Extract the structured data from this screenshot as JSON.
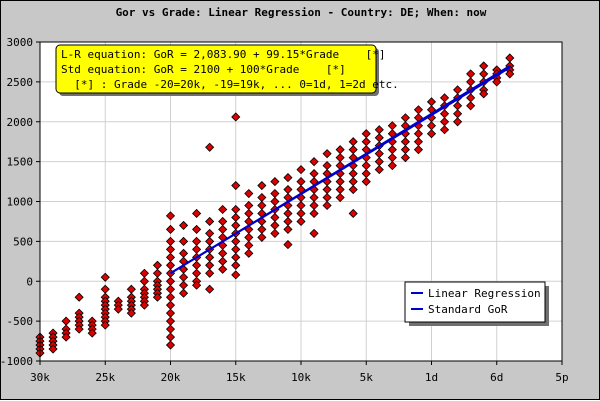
{
  "chart_data": {
    "type": "scatter",
    "title": "Gor vs Grade: Linear Regression - Country: DE; When: now",
    "xlabel": "",
    "ylabel": "",
    "x_ticks": [
      {
        "grade": -30,
        "label": "30k"
      },
      {
        "grade": -25,
        "label": "25k"
      },
      {
        "grade": -20,
        "label": "20k"
      },
      {
        "grade": -15,
        "label": "15k"
      },
      {
        "grade": -10,
        "label": "10k"
      },
      {
        "grade": -5,
        "label": "5k"
      },
      {
        "grade": 0,
        "label": "1d"
      },
      {
        "grade": 5,
        "label": "6d"
      },
      {
        "grade": 10,
        "label": "5p"
      }
    ],
    "xlim": [
      -30,
      10
    ],
    "ylim": [
      -1000,
      3000
    ],
    "y_ticks": [
      -1000,
      -500,
      0,
      500,
      1000,
      1500,
      2000,
      2500,
      3000
    ],
    "grid": true,
    "annotation_lines": [
      "L-R equation: GoR = 2,083.90 + 99.15*Grade    [*]",
      "Std equation: GoR = 2100 + 100*Grade    [*]",
      "  [*] : Grade -20=20k, -19=19k, ... 0=1d, 1=2d etc."
    ],
    "legend_position": "bottom-right",
    "series": [
      {
        "name": "Linear Regression",
        "color": "#0000cc",
        "line": {
          "intercept": 2083.9,
          "slope": 99.15,
          "x_from": -20,
          "x_to": 6
        }
      },
      {
        "name": "Standard GoR",
        "color": "#0000cc",
        "line": {
          "intercept": 2100,
          "slope": 100,
          "x_from": -20,
          "x_to": 6
        }
      }
    ],
    "points_color": "#dd0000",
    "points": [
      [
        -30,
        -700
      ],
      [
        -30,
        -750
      ],
      [
        -30,
        -800
      ],
      [
        -30,
        -850
      ],
      [
        -30,
        -900
      ],
      [
        -29,
        -650
      ],
      [
        -29,
        -700
      ],
      [
        -29,
        -750
      ],
      [
        -29,
        -800
      ],
      [
        -29,
        -850
      ],
      [
        -28,
        -500
      ],
      [
        -28,
        -600
      ],
      [
        -28,
        -650
      ],
      [
        -28,
        -700
      ],
      [
        -27,
        -200
      ],
      [
        -27,
        -400
      ],
      [
        -27,
        -450
      ],
      [
        -27,
        -500
      ],
      [
        -27,
        -550
      ],
      [
        -27,
        -600
      ],
      [
        -26,
        -500
      ],
      [
        -26,
        -550
      ],
      [
        -26,
        -600
      ],
      [
        -26,
        -650
      ],
      [
        -25,
        50
      ],
      [
        -25,
        -100
      ],
      [
        -25,
        -200
      ],
      [
        -25,
        -250
      ],
      [
        -25,
        -300
      ],
      [
        -25,
        -350
      ],
      [
        -25,
        -400
      ],
      [
        -25,
        -450
      ],
      [
        -25,
        -500
      ],
      [
        -25,
        -550
      ],
      [
        -24,
        -250
      ],
      [
        -24,
        -300
      ],
      [
        -24,
        -350
      ],
      [
        -23,
        -100
      ],
      [
        -23,
        -200
      ],
      [
        -23,
        -250
      ],
      [
        -23,
        -300
      ],
      [
        -23,
        -350
      ],
      [
        -23,
        -400
      ],
      [
        -22,
        100
      ],
      [
        -22,
        0
      ],
      [
        -22,
        -100
      ],
      [
        -22,
        -150
      ],
      [
        -22,
        -200
      ],
      [
        -22,
        -250
      ],
      [
        -22,
        -300
      ],
      [
        -21,
        200
      ],
      [
        -21,
        100
      ],
      [
        -21,
        0
      ],
      [
        -21,
        -50
      ],
      [
        -21,
        -100
      ],
      [
        -21,
        -150
      ],
      [
        -21,
        -200
      ],
      [
        -20,
        820
      ],
      [
        -20,
        650
      ],
      [
        -20,
        500
      ],
      [
        -20,
        400
      ],
      [
        -20,
        300
      ],
      [
        -20,
        200
      ],
      [
        -20,
        100
      ],
      [
        -20,
        0
      ],
      [
        -20,
        -100
      ],
      [
        -20,
        -200
      ],
      [
        -20,
        -300
      ],
      [
        -20,
        -400
      ],
      [
        -20,
        -500
      ],
      [
        -20,
        -600
      ],
      [
        -20,
        -700
      ],
      [
        -20,
        -800
      ],
      [
        -19,
        700
      ],
      [
        -19,
        500
      ],
      [
        -19,
        350
      ],
      [
        -19,
        250
      ],
      [
        -19,
        150
      ],
      [
        -19,
        50
      ],
      [
        -19,
        -50
      ],
      [
        -19,
        -150
      ],
      [
        -18,
        850
      ],
      [
        -18,
        650
      ],
      [
        -18,
        500
      ],
      [
        -18,
        400
      ],
      [
        -18,
        300
      ],
      [
        -18,
        200
      ],
      [
        -18,
        100
      ],
      [
        -18,
        0
      ],
      [
        -18,
        -50
      ],
      [
        -17,
        1680
      ],
      [
        -17,
        750
      ],
      [
        -17,
        600
      ],
      [
        -17,
        500
      ],
      [
        -17,
        400
      ],
      [
        -17,
        300
      ],
      [
        -17,
        200
      ],
      [
        -17,
        100
      ],
      [
        -17,
        -100
      ],
      [
        -16,
        900
      ],
      [
        -16,
        750
      ],
      [
        -16,
        650
      ],
      [
        -16,
        550
      ],
      [
        -16,
        450
      ],
      [
        -16,
        350
      ],
      [
        -16,
        250
      ],
      [
        -16,
        150
      ],
      [
        -15,
        2060
      ],
      [
        -15,
        1200
      ],
      [
        -15,
        900
      ],
      [
        -15,
        800
      ],
      [
        -15,
        700
      ],
      [
        -15,
        600
      ],
      [
        -15,
        500
      ],
      [
        -15,
        400
      ],
      [
        -15,
        300
      ],
      [
        -15,
        200
      ],
      [
        -15,
        80
      ],
      [
        -14,
        1100
      ],
      [
        -14,
        950
      ],
      [
        -14,
        850
      ],
      [
        -14,
        750
      ],
      [
        -14,
        650
      ],
      [
        -14,
        550
      ],
      [
        -14,
        450
      ],
      [
        -14,
        350
      ],
      [
        -13,
        1200
      ],
      [
        -13,
        1050
      ],
      [
        -13,
        950
      ],
      [
        -13,
        850
      ],
      [
        -13,
        750
      ],
      [
        -13,
        650
      ],
      [
        -13,
        550
      ],
      [
        -12,
        1250
      ],
      [
        -12,
        1100
      ],
      [
        -12,
        1000
      ],
      [
        -12,
        900
      ],
      [
        -12,
        800
      ],
      [
        -12,
        700
      ],
      [
        -12,
        600
      ],
      [
        -11,
        1300
      ],
      [
        -11,
        1150
      ],
      [
        -11,
        1050
      ],
      [
        -11,
        950
      ],
      [
        -11,
        850
      ],
      [
        -11,
        750
      ],
      [
        -11,
        650
      ],
      [
        -11,
        460
      ],
      [
        -10,
        1400
      ],
      [
        -10,
        1250
      ],
      [
        -10,
        1150
      ],
      [
        -10,
        1050
      ],
      [
        -10,
        950
      ],
      [
        -10,
        850
      ],
      [
        -10,
        750
      ],
      [
        -9,
        1500
      ],
      [
        -9,
        1350
      ],
      [
        -9,
        1250
      ],
      [
        -9,
        1150
      ],
      [
        -9,
        1050
      ],
      [
        -9,
        950
      ],
      [
        -9,
        850
      ],
      [
        -9,
        600
      ],
      [
        -8,
        1600
      ],
      [
        -8,
        1450
      ],
      [
        -8,
        1350
      ],
      [
        -8,
        1250
      ],
      [
        -8,
        1150
      ],
      [
        -8,
        1050
      ],
      [
        -8,
        950
      ],
      [
        -7,
        1650
      ],
      [
        -7,
        1550
      ],
      [
        -7,
        1450
      ],
      [
        -7,
        1350
      ],
      [
        -7,
        1250
      ],
      [
        -7,
        1150
      ],
      [
        -7,
        1050
      ],
      [
        -6,
        1750
      ],
      [
        -6,
        1650
      ],
      [
        -6,
        1550
      ],
      [
        -6,
        1450
      ],
      [
        -6,
        1350
      ],
      [
        -6,
        1250
      ],
      [
        -6,
        1150
      ],
      [
        -6,
        850
      ],
      [
        -5,
        1850
      ],
      [
        -5,
        1750
      ],
      [
        -5,
        1650
      ],
      [
        -5,
        1550
      ],
      [
        -5,
        1450
      ],
      [
        -5,
        1350
      ],
      [
        -5,
        1250
      ],
      [
        -4,
        1900
      ],
      [
        -4,
        1800
      ],
      [
        -4,
        1700
      ],
      [
        -4,
        1600
      ],
      [
        -4,
        1500
      ],
      [
        -4,
        1400
      ],
      [
        -3,
        1950
      ],
      [
        -3,
        1850
      ],
      [
        -3,
        1750
      ],
      [
        -3,
        1650
      ],
      [
        -3,
        1550
      ],
      [
        -3,
        1450
      ],
      [
        -2,
        2050
      ],
      [
        -2,
        1950
      ],
      [
        -2,
        1850
      ],
      [
        -2,
        1750
      ],
      [
        -2,
        1650
      ],
      [
        -2,
        1550
      ],
      [
        -1,
        2150
      ],
      [
        -1,
        2050
      ],
      [
        -1,
        1950
      ],
      [
        -1,
        1850
      ],
      [
        -1,
        1750
      ],
      [
        -1,
        1650
      ],
      [
        0,
        2250
      ],
      [
        0,
        2150
      ],
      [
        0,
        2050
      ],
      [
        0,
        1950
      ],
      [
        0,
        1850
      ],
      [
        1,
        2300
      ],
      [
        1,
        2200
      ],
      [
        1,
        2100
      ],
      [
        1,
        2000
      ],
      [
        1,
        1900
      ],
      [
        2,
        2400
      ],
      [
        2,
        2300
      ],
      [
        2,
        2200
      ],
      [
        2,
        2100
      ],
      [
        2,
        2000
      ],
      [
        3,
        2600
      ],
      [
        3,
        2500
      ],
      [
        3,
        2400
      ],
      [
        3,
        2300
      ],
      [
        3,
        2200
      ],
      [
        4,
        2700
      ],
      [
        4,
        2600
      ],
      [
        4,
        2500
      ],
      [
        4,
        2400
      ],
      [
        4,
        2350
      ],
      [
        5,
        2650
      ],
      [
        5,
        2600
      ],
      [
        5,
        2550
      ],
      [
        5,
        2500
      ],
      [
        6,
        2800
      ],
      [
        6,
        2700
      ],
      [
        6,
        2650
      ],
      [
        6,
        2600
      ]
    ]
  }
}
